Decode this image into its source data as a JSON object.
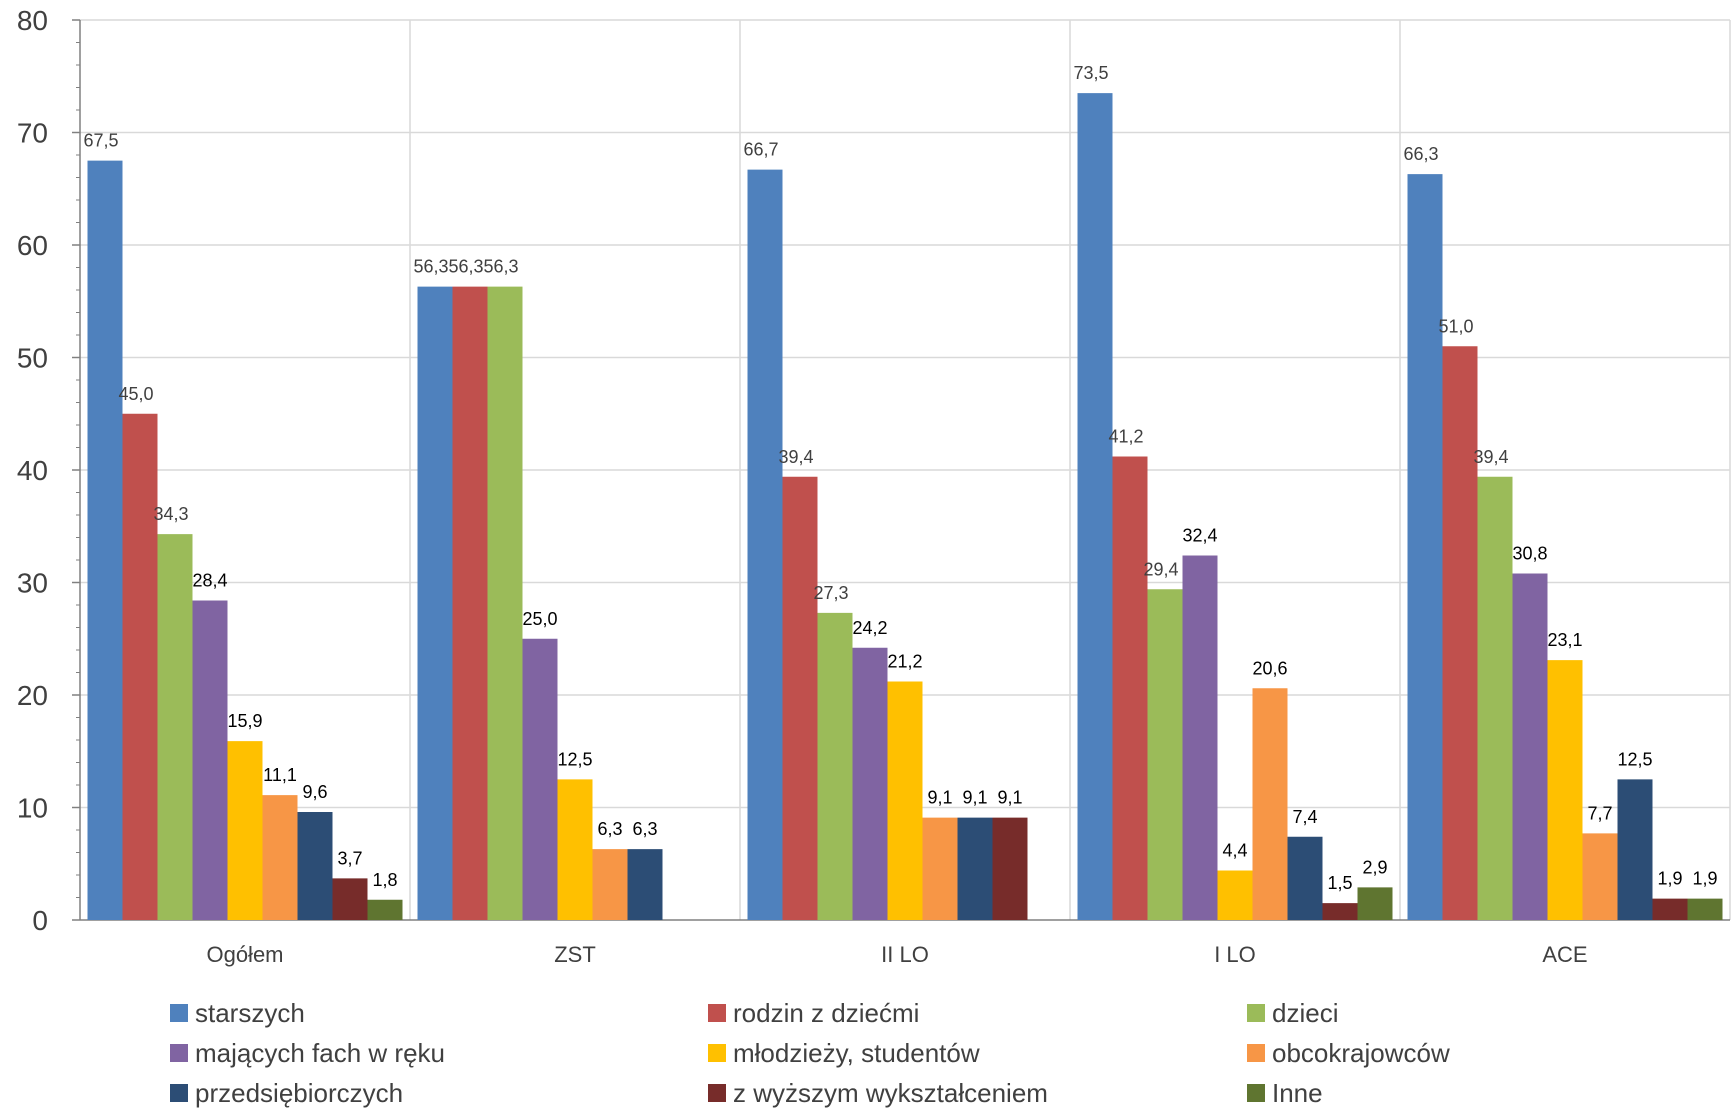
{
  "chart_data": {
    "type": "bar",
    "categories": [
      "Ogółem",
      "ZST",
      "II LO",
      "I LO",
      "ACE"
    ],
    "ylim": [
      0,
      80
    ],
    "yticks": [
      0,
      10,
      20,
      30,
      40,
      50,
      60,
      70,
      80
    ],
    "grid": true,
    "legend_position": "bottom",
    "series": [
      {
        "name": "starszych",
        "color": "#4F81BD",
        "values": [
          67.5,
          56.3,
          66.7,
          73.5,
          66.3
        ],
        "labels": [
          "67,5",
          "56,3",
          "66,7",
          "73,5",
          "66,3"
        ]
      },
      {
        "name": "rodzin z dziećmi",
        "color": "#C0504D",
        "values": [
          45.0,
          56.3,
          39.4,
          41.2,
          51.0
        ],
        "labels": [
          "45,0",
          "56,3",
          "39,4",
          "41,2",
          "51,0"
        ]
      },
      {
        "name": "dzieci",
        "color": "#9BBB59",
        "values": [
          34.3,
          56.3,
          27.3,
          29.4,
          39.4
        ],
        "labels": [
          "34,3",
          "56,3",
          "27,3",
          "29,4",
          "39,4"
        ]
      },
      {
        "name": "mających fach w ręku",
        "color": "#8064A2",
        "values": [
          28.4,
          25.0,
          24.2,
          32.4,
          30.8
        ],
        "labels": [
          "28,4",
          "25,0",
          "24,2",
          "32,4",
          "30,8"
        ]
      },
      {
        "name": "młodzieży, studentów",
        "color": "#FFC000",
        "values": [
          15.9,
          12.5,
          21.2,
          4.4,
          23.1
        ],
        "labels": [
          "15,9",
          "12,5",
          "21,2",
          "4,4",
          "23,1"
        ]
      },
      {
        "name": "obcokrajowców",
        "color": "#F79646",
        "values": [
          11.1,
          6.3,
          9.1,
          20.6,
          7.7
        ],
        "labels": [
          "11,1",
          "6,3",
          "9,1",
          "20,6",
          "7,7"
        ]
      },
      {
        "name": "przedsiębiorczych",
        "color": "#2C4D75",
        "values": [
          9.6,
          6.3,
          9.1,
          7.4,
          12.5
        ],
        "labels": [
          "9,6",
          "6,3",
          "9,1",
          "7,4",
          "12,5"
        ]
      },
      {
        "name": "z wyższym wykształceniem",
        "color": "#772C2A",
        "values": [
          3.7,
          null,
          9.1,
          1.5,
          1.9
        ],
        "labels": [
          "3,7",
          null,
          "9,1",
          "1,5",
          "1,9"
        ]
      },
      {
        "name": "Inne",
        "color": "#5F7530",
        "values": [
          1.8,
          null,
          null,
          2.9,
          1.9
        ],
        "labels": [
          "1,8",
          null,
          null,
          "2,9",
          "1,9"
        ]
      }
    ]
  }
}
